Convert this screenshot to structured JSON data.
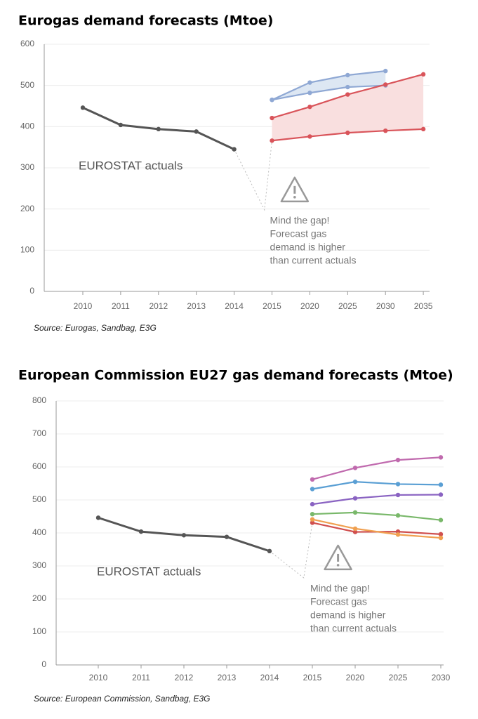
{
  "chart_data": [
    {
      "type": "line",
      "title": "Eurogas demand forecasts (Mtoe)",
      "source": "Source: Eurogas, Sandbag, E3G",
      "categories": [
        "2010",
        "2011",
        "2012",
        "2013",
        "2014",
        "2015",
        "2020",
        "2025",
        "2030",
        "2035"
      ],
      "ylim": [
        0,
        600
      ],
      "yticks": [
        0,
        100,
        200,
        300,
        400,
        500,
        600
      ],
      "grid": true,
      "annotation": [
        "Mind the gap!",
        "Forecast gas",
        "demand is higher",
        "than current actuals"
      ],
      "series": [
        {
          "name": "EUROSTAT actuals",
          "color": "#555555",
          "values": [
            446,
            404,
            394,
            388,
            345,
            null,
            null,
            null,
            null,
            null
          ]
        },
        {
          "color": "#8fa8d4",
          "fill": "#dde7f3",
          "values": [
            null,
            null,
            null,
            null,
            null,
            465,
            507,
            525,
            535,
            null
          ]
        },
        {
          "color": "#8fa8d4",
          "values": [
            null,
            null,
            null,
            null,
            null,
            465,
            482,
            496,
            500,
            null
          ]
        },
        {
          "color": "#d9545a",
          "fill": "#f9dfdf",
          "values": [
            null,
            null,
            null,
            null,
            null,
            421,
            448,
            478,
            502,
            527
          ]
        },
        {
          "color": "#d9545a",
          "values": [
            null,
            null,
            null,
            null,
            null,
            366,
            376,
            385,
            390,
            394
          ]
        }
      ]
    },
    {
      "type": "line",
      "title": "European Commission EU27 gas demand forecasts (Mtoe)",
      "source": "Source: European Commission, Sandbag, E3G",
      "categories": [
        "2010",
        "2011",
        "2012",
        "2013",
        "2014",
        "2015",
        "2020",
        "2025",
        "2030"
      ],
      "ylim": [
        0,
        800
      ],
      "yticks": [
        0,
        100,
        200,
        300,
        400,
        500,
        600,
        700,
        800
      ],
      "grid": true,
      "annotation": [
        "Mind the gap!",
        "Forecast gas",
        "demand is higher",
        "than current actuals"
      ],
      "series": [
        {
          "name": "EUROSTAT actuals",
          "color": "#555555",
          "values": [
            446,
            404,
            393,
            388,
            345,
            null,
            null,
            null,
            null
          ]
        },
        {
          "color": "#c06aae",
          "values": [
            null,
            null,
            null,
            null,
            null,
            562,
            597,
            621,
            629
          ]
        },
        {
          "color": "#5a9fd4",
          "values": [
            null,
            null,
            null,
            null,
            null,
            533,
            555,
            548,
            546
          ]
        },
        {
          "color": "#8a63c2",
          "values": [
            null,
            null,
            null,
            null,
            null,
            487,
            505,
            515,
            516
          ]
        },
        {
          "color": "#79b86a",
          "values": [
            null,
            null,
            null,
            null,
            null,
            457,
            462,
            453,
            439
          ]
        },
        {
          "color": "#d0504f",
          "values": [
            null,
            null,
            null,
            null,
            null,
            431,
            403,
            404,
            396
          ]
        },
        {
          "color": "#f0a050",
          "values": [
            null,
            null,
            null,
            null,
            null,
            441,
            413,
            395,
            385
          ]
        }
      ]
    }
  ]
}
